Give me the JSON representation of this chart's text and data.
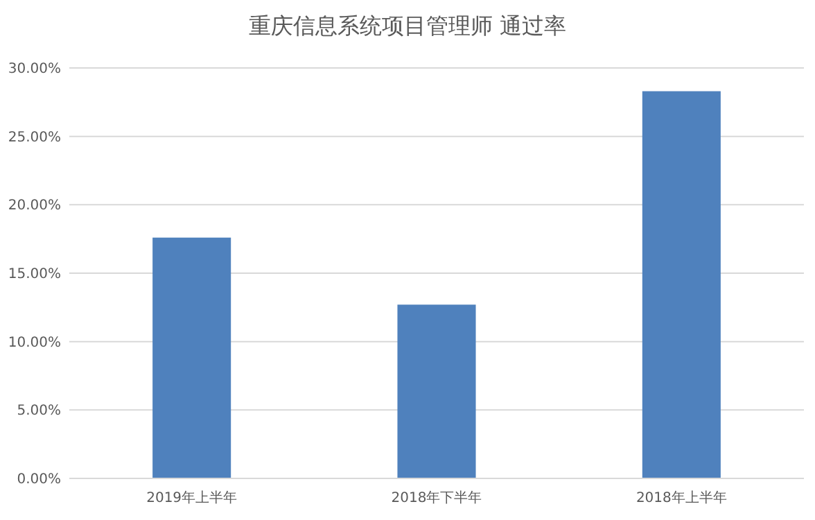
{
  "chart_data": {
    "type": "bar",
    "title": "重庆信息系统项目管理师 通过率",
    "categories": [
      "2019年上半年",
      "2018年下半年",
      "2018年上半年"
    ],
    "values": [
      17.6,
      12.7,
      28.3
    ],
    "color": "#4f81bd",
    "ylim": [
      0,
      30
    ],
    "yticks": [
      {
        "value": 0,
        "label": "0.00%"
      },
      {
        "value": 5,
        "label": "5.00%"
      },
      {
        "value": 10,
        "label": "10.00%"
      },
      {
        "value": 15,
        "label": "15.00%"
      },
      {
        "value": 20,
        "label": "20.00%"
      },
      {
        "value": 25,
        "label": "25.00%"
      },
      {
        "value": 30,
        "label": "30.00%"
      }
    ],
    "grid": "y"
  }
}
